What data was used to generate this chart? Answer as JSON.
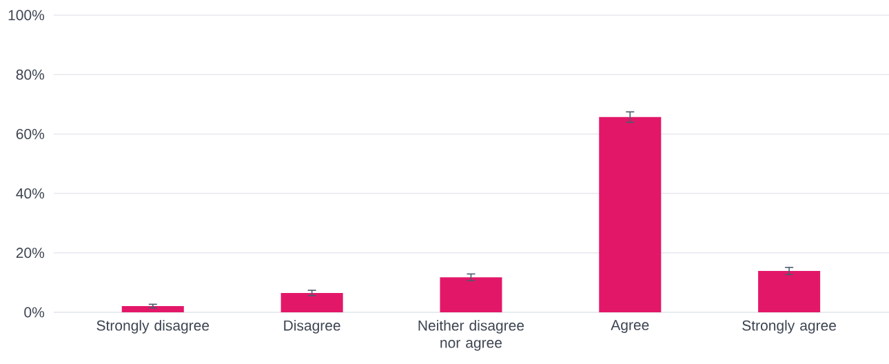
{
  "chart_data": {
    "type": "bar",
    "categories": [
      "Strongly disagree",
      "Disagree",
      "Neither disagree nor agree",
      "Agree",
      "Strongly agree"
    ],
    "values": [
      2.1,
      6.5,
      11.8,
      65.7,
      13.9
    ],
    "errors": [
      0.6,
      0.9,
      1.1,
      1.75,
      1.2
    ],
    "color": "#e31768",
    "ylim": [
      0,
      100
    ],
    "yticks": [
      {
        "value": 0,
        "label": "0%"
      },
      {
        "value": 20,
        "label": "20%"
      },
      {
        "value": 40,
        "label": "40%"
      },
      {
        "value": 60,
        "label": "60%"
      },
      {
        "value": 80,
        "label": "80%"
      },
      {
        "value": 100,
        "label": "100%"
      }
    ],
    "grid": "y"
  }
}
